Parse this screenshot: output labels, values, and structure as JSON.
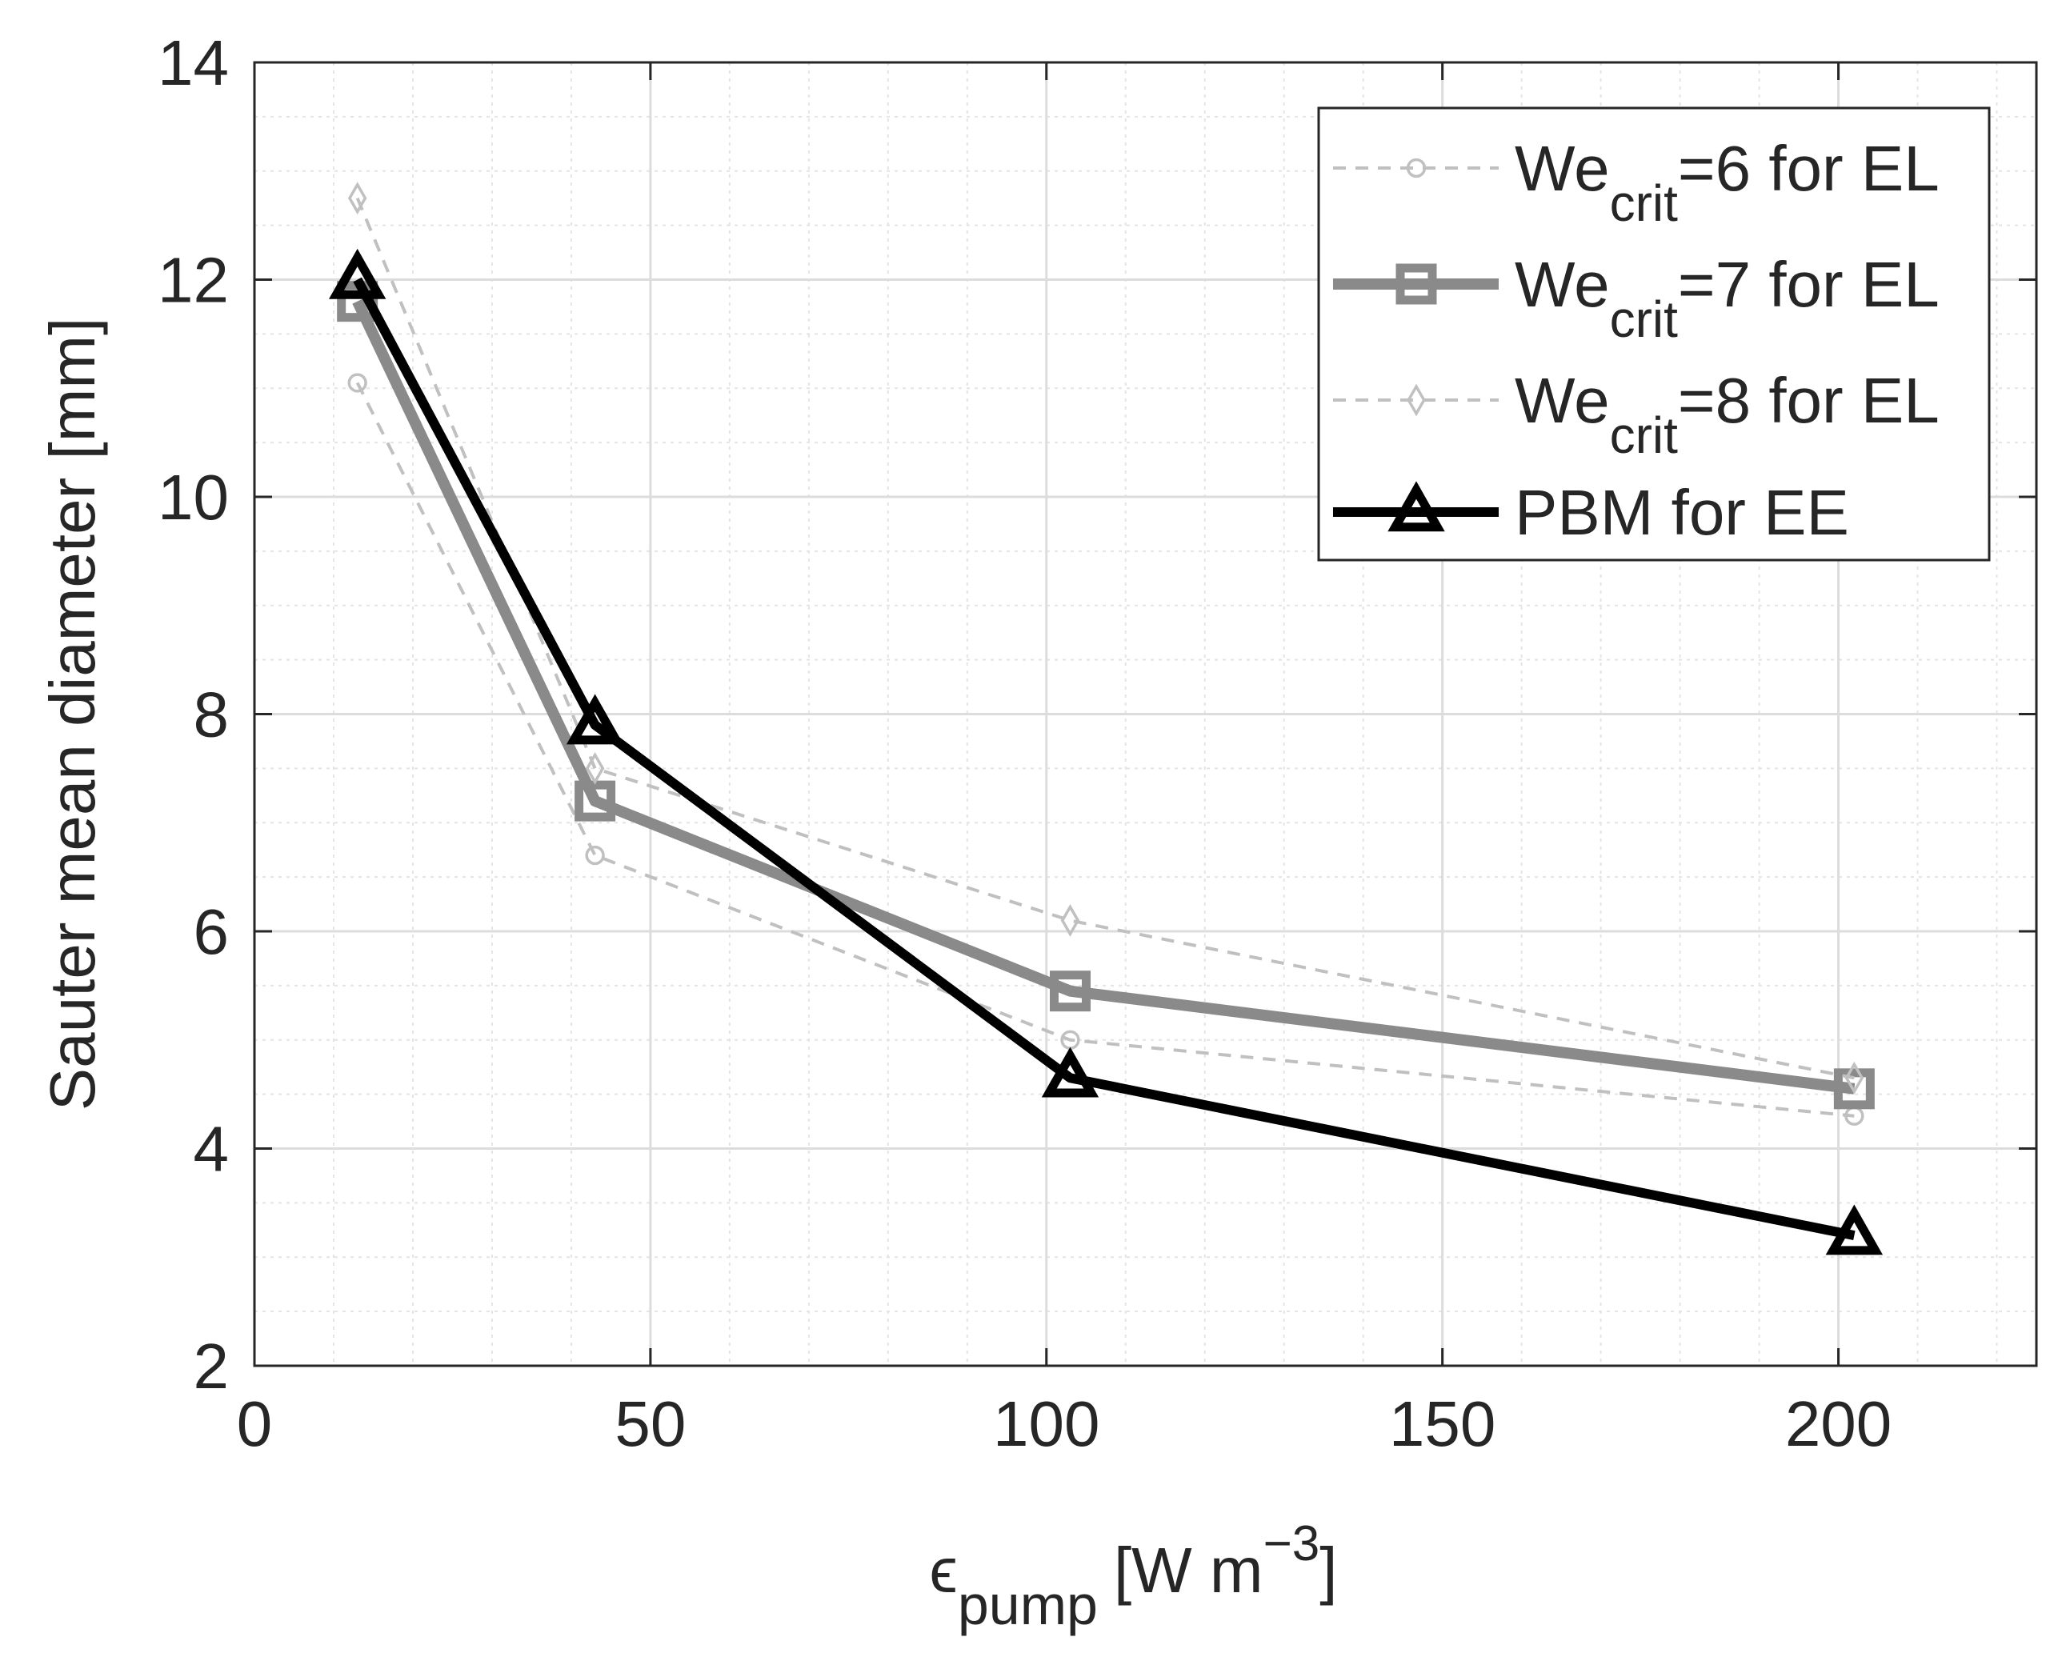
{
  "chart_data": {
    "type": "line",
    "title": "",
    "xlabel": {
      "symbol": "ϵ",
      "subscript": "pump",
      "unit_open": "[W m",
      "exponent": "−3",
      "unit_close": "]"
    },
    "ylabel": "Sauter mean diameter [mm]",
    "xlim": [
      0,
      225
    ],
    "ylim": [
      2,
      14
    ],
    "xticks": [
      0,
      50,
      100,
      150,
      200
    ],
    "yticks": [
      2,
      4,
      6,
      8,
      10,
      12,
      14
    ],
    "x_minor_step": 10,
    "y_minor_step": 0.5,
    "grid": true,
    "legend_position": "top-right",
    "series": [
      {
        "name": "We_crit=6 for EL",
        "legend_main": "We",
        "legend_sub": "crit",
        "legend_rest": "=6 for EL",
        "color": "#c0c0c0",
        "style": "dashed",
        "marker": "circle",
        "x": [
          13,
          43,
          103,
          202
        ],
        "y": [
          11.05,
          6.7,
          5.0,
          4.3
        ]
      },
      {
        "name": "We_crit=7 for EL",
        "legend_main": "We",
        "legend_sub": "crit",
        "legend_rest": "=7 for EL",
        "color": "#8a8a8a",
        "style": "solid-thick",
        "marker": "square",
        "x": [
          13,
          43,
          103,
          202
        ],
        "y": [
          11.8,
          7.2,
          5.45,
          4.55
        ]
      },
      {
        "name": "We_crit=8 for EL",
        "legend_main": "We",
        "legend_sub": "crit",
        "legend_rest": "=8 for EL",
        "color": "#c0c0c0",
        "style": "dashed",
        "marker": "diamond",
        "x": [
          13,
          43,
          103,
          202
        ],
        "y": [
          12.75,
          7.5,
          6.1,
          4.65
        ]
      },
      {
        "name": "PBM for EE",
        "legend_main": "PBM for EE",
        "legend_sub": "",
        "legend_rest": "",
        "color": "#000000",
        "style": "solid-bold",
        "marker": "triangle",
        "x": [
          13,
          43,
          103,
          202
        ],
        "y": [
          12.0,
          7.9,
          4.65,
          3.2
        ]
      }
    ]
  }
}
